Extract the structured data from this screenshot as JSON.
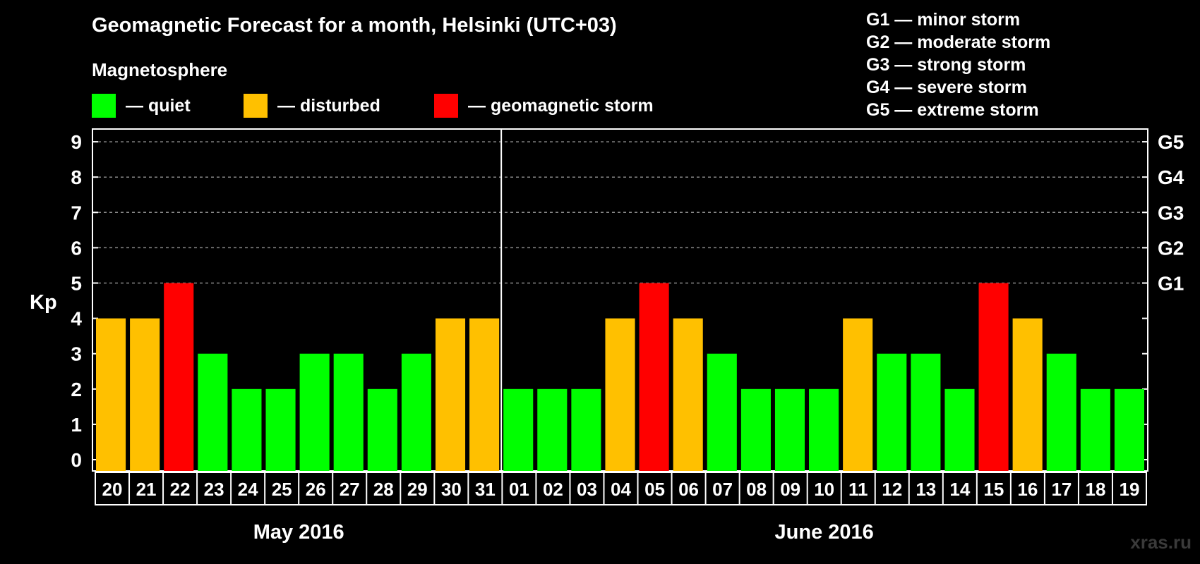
{
  "title": "Geomagnetic Forecast for a month, Helsinki (UTC+03)",
  "legend": {
    "heading": "Magnetosphere",
    "items": [
      {
        "label": "— quiet",
        "color": "#00ff00"
      },
      {
        "label": "— disturbed",
        "color": "#ffc000"
      },
      {
        "label": "— geomagnetic storm",
        "color": "#ff0000"
      }
    ]
  },
  "storm_levels": [
    "G1 — minor storm",
    "G2 — moderate storm",
    "G3 — strong storm",
    "G4 — severe storm",
    "G5 — extreme storm"
  ],
  "watermark": "xras.ru",
  "chart_data": {
    "type": "bar",
    "ylabel": "Kp",
    "ylim": [
      0,
      9
    ],
    "yticks": [
      "0",
      "1",
      "2",
      "3",
      "4",
      "5",
      "6",
      "7",
      "8",
      "9"
    ],
    "right_axis_labels": [
      {
        "value": 5,
        "label": "G1"
      },
      {
        "value": 6,
        "label": "G2"
      },
      {
        "value": 7,
        "label": "G3"
      },
      {
        "value": 8,
        "label": "G4"
      },
      {
        "value": 9,
        "label": "G5"
      }
    ],
    "grid": "dashed horizontal at 5-9",
    "months": [
      {
        "label": "May 2016",
        "days": [
          "20",
          "21",
          "22",
          "23",
          "24",
          "25",
          "26",
          "27",
          "28",
          "29",
          "30",
          "31"
        ]
      },
      {
        "label": "June 2016",
        "days": [
          "01",
          "02",
          "03",
          "04",
          "05",
          "06",
          "07",
          "08",
          "09",
          "10",
          "11",
          "12",
          "13",
          "14",
          "15",
          "16",
          "17",
          "18",
          "19"
        ]
      }
    ],
    "values": [
      4,
      4,
      5,
      3,
      2,
      2,
      3,
      3,
      2,
      3,
      4,
      4,
      2,
      2,
      2,
      4,
      5,
      4,
      3,
      2,
      2,
      2,
      4,
      3,
      3,
      2,
      5,
      4,
      3,
      2,
      2
    ],
    "colors": {
      "quiet": "#00ff00",
      "disturbed": "#ffc000",
      "storm": "#ff0000"
    }
  }
}
